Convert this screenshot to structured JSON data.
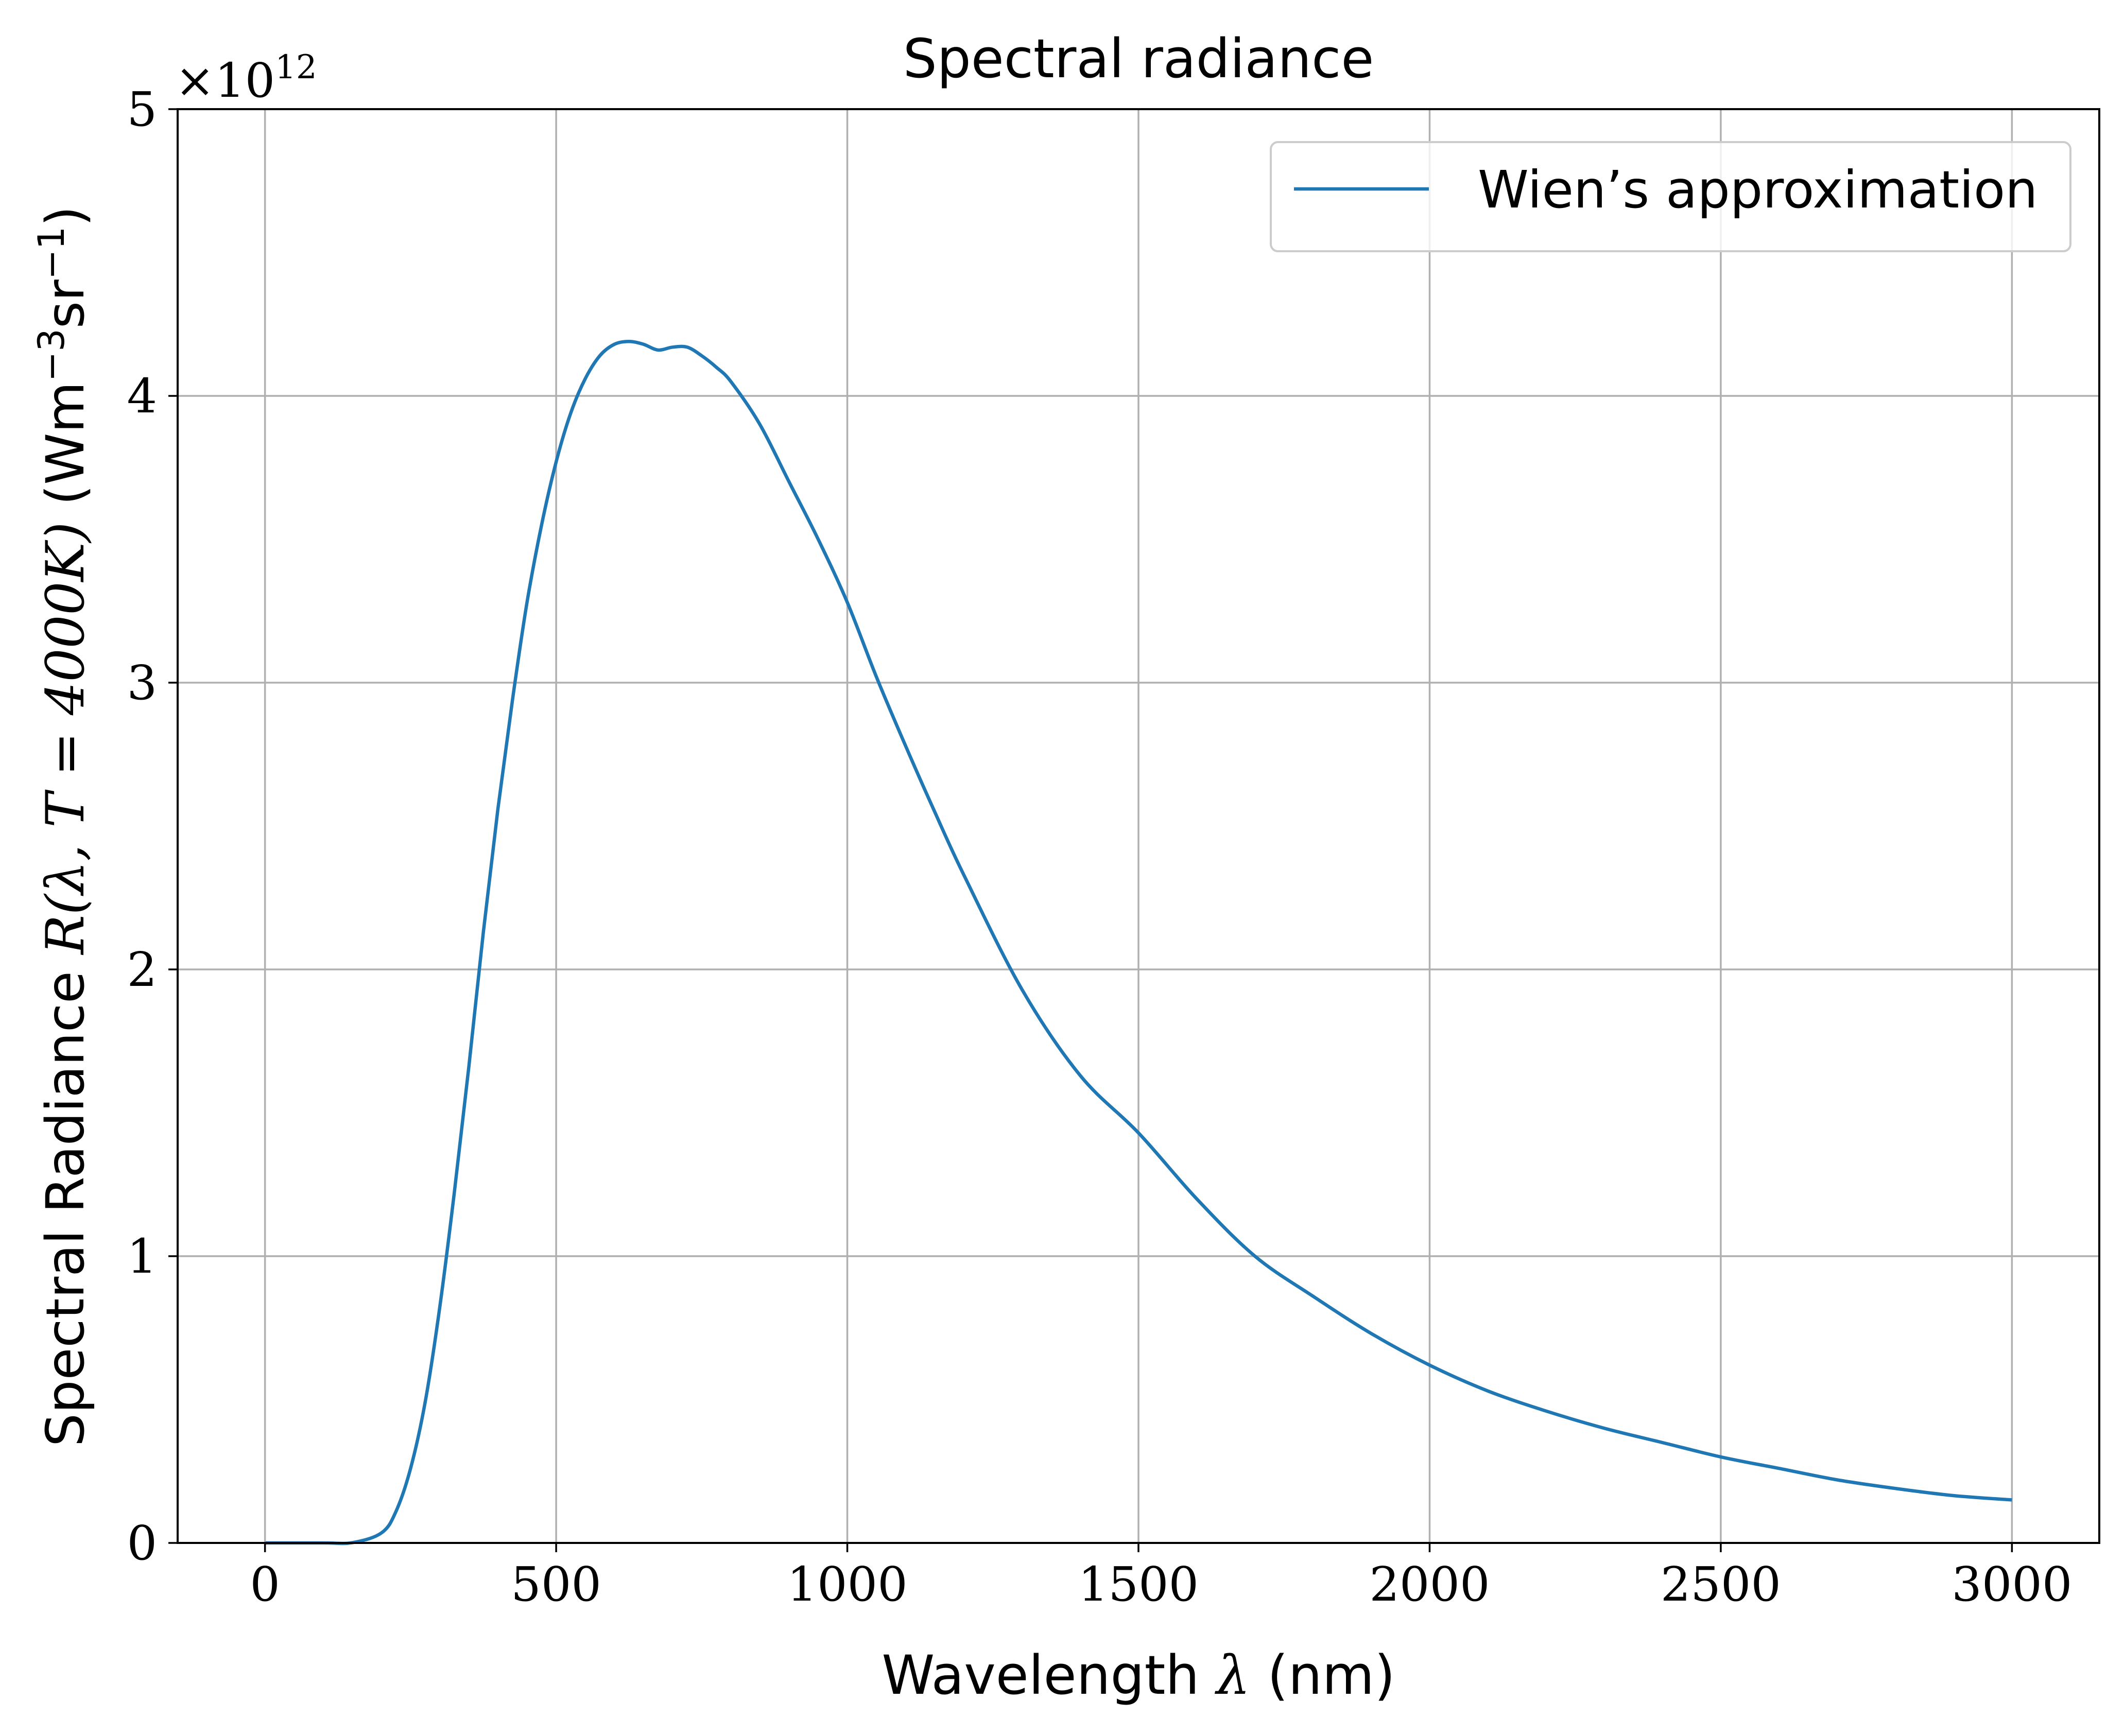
{
  "chart_data": {
    "type": "line",
    "title": "Spectral radiance",
    "xlabel": {
      "text": "Wavelength ",
      "symbol": "λ",
      "suffix": " (nm)"
    },
    "ylabel": {
      "prefix": "Spectral Radiance ",
      "math": "R(λ, T = 4000K)",
      "units": " (Wm",
      "units_exp1": "−3",
      "units_mid": "sr",
      "units_exp2": "−1",
      "units_close": ")"
    },
    "y_offset_text": {
      "base": "×10",
      "exponent": "12"
    },
    "xlim": [
      -150,
      3150
    ],
    "ylim": [
      0,
      5000000000000.0
    ],
    "x_ticks": [
      0,
      500,
      1000,
      1500,
      2000,
      2500,
      3000
    ],
    "y_ticks": [
      0,
      1,
      2,
      3,
      4,
      5
    ],
    "y_scale": 1000000000000.0,
    "grid": true,
    "legend_position": "upper right",
    "series": [
      {
        "name": "Wien’s approximation",
        "color": "#1f77b4",
        "x": [
          1,
          100,
          150,
          200,
          225,
          250,
          275,
          300,
          325,
          350,
          375,
          400,
          425,
          450,
          475,
          500,
          525,
          550,
          575,
          600,
          625,
          650,
          675,
          700,
          725,
          750,
          775,
          800,
          850,
          900,
          950,
          1000,
          1050,
          1100,
          1150,
          1200,
          1300,
          1400,
          1500,
          1600,
          1700,
          1800,
          1900,
          2000,
          2100,
          2200,
          2300,
          2400,
          2500,
          2600,
          2700,
          2800,
          2900,
          3000
        ],
        "y": [
          0,
          0,
          1000000000.0,
          35000000000.0,
          110000000000.0,
          260000000000.0,
          490000000000.0,
          820000000000.0,
          1220000000000.0,
          1660000000000.0,
          2130000000000.0,
          2560000000000.0,
          2940000000000.0,
          3280000000000.0,
          3550000000000.0,
          3770000000000.0,
          3940000000000.0,
          4060000000000.0,
          4140000000000.0,
          4180000000000.0,
          4190000000000.0,
          4180000000000.0,
          4160000000000.0,
          4170000000000.0,
          4170000000000.0,
          4140000000000.0,
          4100000000000.0,
          4050000000000.0,
          3900000000000.0,
          3700000000000.0,
          3500000000000.0,
          3280000000000.0,
          3020000000000.0,
          2780000000000.0,
          2550000000000.0,
          2330000000000.0,
          1930000000000.0,
          1630000000000.0,
          1430000000000.0,
          1200000000000.0,
          1000000000000.0,
          860000000000.0,
          730000000000.0,
          620000000000.0,
          530000000000.0,
          460000000000.0,
          400000000000.0,
          350000000000.0,
          300000000000.0,
          260000000000.0,
          220000000000.0,
          190000000000.0,
          165000000000.0,
          150000000000.0
        ]
      }
    ]
  }
}
